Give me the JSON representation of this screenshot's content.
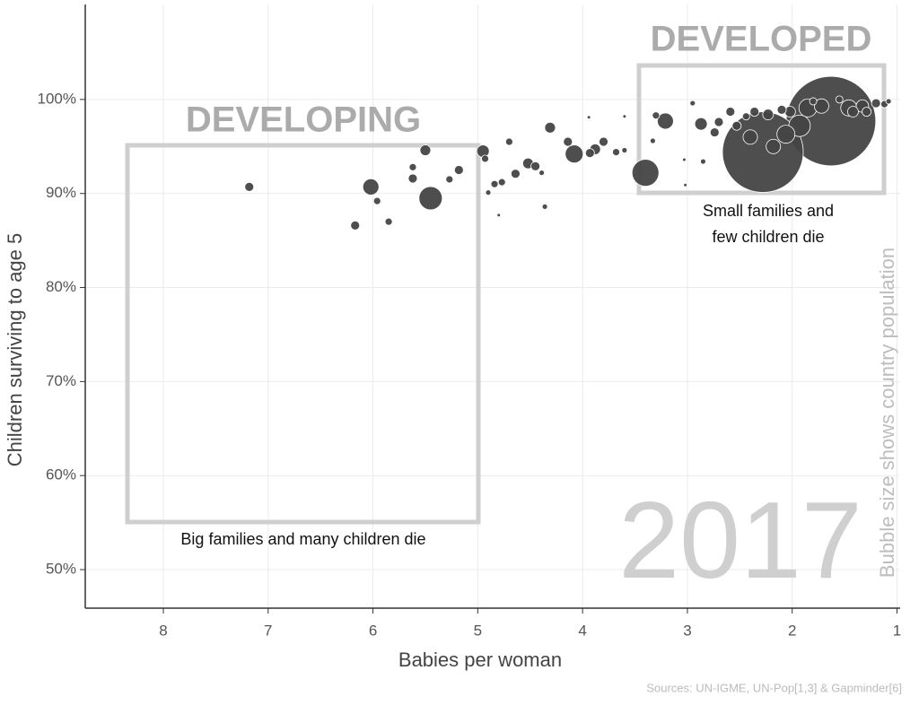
{
  "chart_data": {
    "type": "bubble",
    "x_label": "Babies per woman",
    "y_label": "Children surviving to age 5",
    "xlim": [
      8.745,
      0.97
    ],
    "ylim": [
      45.9,
      110.1
    ],
    "xticks": [
      8,
      7,
      6,
      5,
      4,
      3,
      2,
      1
    ],
    "yticks": [
      {
        "value": 50,
        "label": "50%"
      },
      {
        "value": 60,
        "label": "60%"
      },
      {
        "value": 70,
        "label": "70%"
      },
      {
        "value": 80,
        "label": "80%"
      },
      {
        "value": 90,
        "label": "90%"
      },
      {
        "value": 100,
        "label": "100%"
      }
    ],
    "grid": true,
    "color": "#444444",
    "x": [
      7.18,
      6.02,
      5.45,
      6.17,
      5.85,
      5.96,
      5.5,
      5.62,
      5.62,
      5.27,
      5.18,
      4.95,
      4.93,
      4.84,
      4.77,
      4.9,
      4.8,
      4.7,
      4.64,
      4.52,
      4.45,
      4.39,
      4.36,
      4.31,
      4.14,
      4.08,
      3.93,
      3.88,
      3.8,
      3.68,
      3.6,
      3.94,
      3.6,
      3.4,
      3.21,
      3.3,
      3.33,
      3.03,
      3.02,
      2.95,
      2.87,
      2.85,
      2.74,
      2.7,
      2.59,
      2.53,
      2.4,
      2.28,
      2.18,
      2.06,
      1.93,
      1.63,
      1.85,
      1.72,
      1.46,
      1.33,
      1.2,
      1.12,
      2.02,
      2.1,
      2.23,
      2.36,
      2.44,
      1.42,
      1.55,
      1.8,
      1.29,
      1.08
    ],
    "values": [
      90.7,
      90.7,
      89.5,
      86.6,
      87.0,
      89.2,
      94.6,
      92.8,
      91.6,
      91.5,
      92.5,
      94.5,
      93.7,
      91.0,
      91.2,
      90.1,
      87.7,
      95.5,
      92.1,
      93.2,
      92.9,
      92.2,
      88.6,
      97.0,
      95.5,
      94.2,
      94.3,
      94.7,
      95.5,
      94.4,
      94.6,
      98.1,
      98.2,
      92.2,
      97.7,
      98.3,
      95.6,
      93.6,
      90.9,
      99.6,
      97.4,
      93.4,
      96.5,
      97.6,
      98.7,
      97.2,
      96.0,
      94.4,
      95.0,
      96.3,
      97.2,
      97.7,
      99.1,
      99.3,
      99.1,
      99.3,
      99.6,
      99.5,
      98.7,
      98.9,
      98.4,
      98.7,
      98.2,
      98.7,
      100.0,
      99.8,
      98.7,
      99.8
    ],
    "sizes": [
      14,
      45,
      94,
      14,
      9,
      9,
      20,
      9,
      14,
      9,
      14,
      27,
      9,
      9,
      9,
      5,
      2,
      9,
      14,
      20,
      14,
      5,
      5,
      20,
      14,
      56,
      14,
      20,
      14,
      9,
      5,
      2,
      2,
      125,
      45,
      9,
      5,
      2,
      2,
      5,
      27,
      5,
      14,
      14,
      14,
      14,
      36,
      1128,
      36,
      56,
      80,
      1386,
      56,
      36,
      45,
      27,
      14,
      9,
      20,
      14,
      20,
      14,
      9,
      20,
      9,
      9,
      14,
      5
    ],
    "annotations": [
      "DEVELOPING",
      "DEVELOPED",
      "Small families and",
      "few children die",
      "Big families and many children die",
      "2017",
      "Bubble size shows country population"
    ],
    "source": "Sources: UN-IGME, UN-Pop[1,3] & Gapminder[6]"
  }
}
